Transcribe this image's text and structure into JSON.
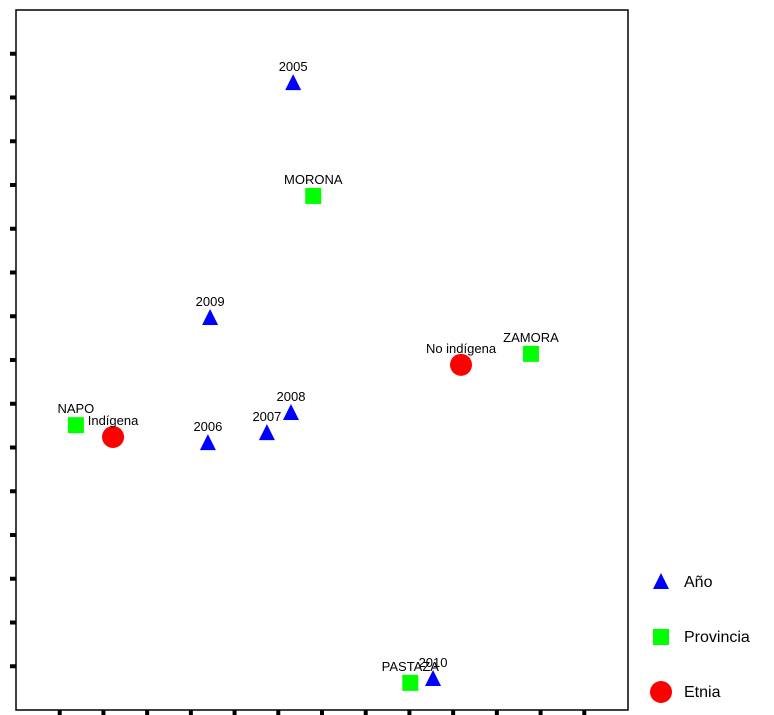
{
  "chart_data": {
    "type": "scatter",
    "xlim": [
      0,
      14
    ],
    "ylim": [
      0,
      16
    ],
    "xticks": [
      1,
      2,
      3,
      4,
      5,
      6,
      7,
      8,
      9,
      10,
      11,
      12,
      13
    ],
    "yticks": [
      1,
      2,
      3,
      4,
      5,
      6,
      7,
      8,
      9,
      10,
      11,
      12,
      13,
      14,
      15
    ],
    "series": [
      {
        "name": "Año",
        "color": "#0000ff",
        "marker": "triangle",
        "labels": [
          "2005",
          "2009",
          "2008",
          "2007",
          "2006",
          "2010"
        ],
        "x": [
          6.34,
          4.44,
          6.29,
          5.74,
          4.39,
          9.54
        ],
        "values": [
          14.33,
          8.96,
          6.79,
          6.33,
          6.1,
          0.71
        ]
      },
      {
        "name": "Provincia",
        "color": "#00ff00",
        "marker": "square",
        "labels": [
          "MORONA",
          "ZAMORA",
          "NAPO",
          "PASTAZA"
        ],
        "x": [
          6.8,
          11.78,
          1.37,
          9.02
        ],
        "values": [
          11.75,
          8.14,
          6.51,
          0.62
        ]
      },
      {
        "name": "Etnia",
        "color": "#ff0000",
        "marker": "circle",
        "labels": [
          "No indígena",
          "Indígena"
        ],
        "x": [
          10.18,
          2.22
        ],
        "values": [
          7.89,
          6.24
        ]
      }
    ]
  }
}
